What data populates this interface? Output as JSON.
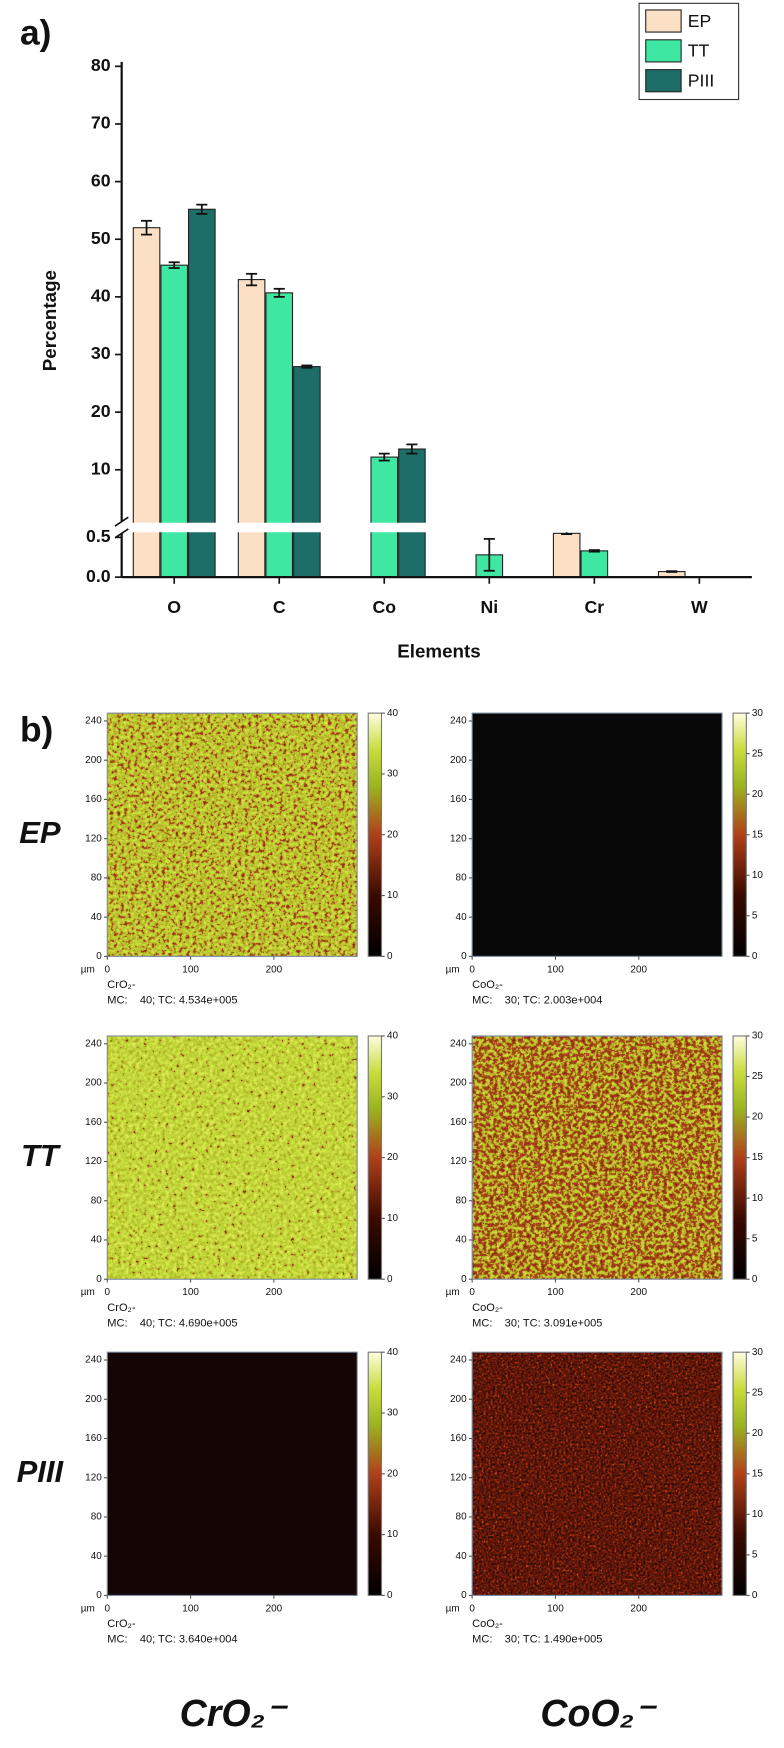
{
  "chart_data": {
    "type": "bar",
    "panel_label": "a)",
    "x_label": "Elements",
    "y_label": "Percentage",
    "categories": [
      "O",
      "C",
      "Co",
      "Ni",
      "Cr",
      "W"
    ],
    "series": [
      {
        "name": "EP",
        "color": "#fbe0c6",
        "values": [
          52,
          43,
          null,
          null,
          0.55,
          0.07
        ],
        "errors": [
          1.2,
          1.0,
          null,
          null,
          0.01,
          0.005
        ]
      },
      {
        "name": "TT",
        "color": "#3fe8a2",
        "values": [
          45.5,
          40.7,
          12.2,
          0.28,
          0.33,
          null
        ],
        "errors": [
          0.5,
          0.7,
          0.6,
          0.2,
          0.01,
          null
        ]
      },
      {
        "name": "PIII",
        "color": "#1d6d69",
        "values": [
          55.2,
          27.9,
          13.6,
          null,
          null,
          null
        ],
        "errors": [
          0.8,
          0.2,
          0.8,
          null,
          null,
          null
        ]
      }
    ],
    "ylim": [
      0,
      80
    ],
    "ybreak": [
      0.55,
      1
    ],
    "yticks": [
      {
        "value": 0,
        "label": "0.0"
      },
      {
        "value": 0.5,
        "label": "0.5"
      },
      10,
      20,
      30,
      40,
      50,
      60,
      70,
      80
    ],
    "legend": "upper right"
  },
  "maps": {
    "panel_label": "b)",
    "row_labels": [
      "EP",
      "TT",
      "PIII"
    ],
    "column_labels": [
      "CrO₂⁻",
      "CoO₂⁻"
    ],
    "unit": "µm",
    "xlim": [
      0,
      300
    ],
    "xticks": [
      0,
      100,
      200
    ],
    "ylim": [
      0,
      248
    ],
    "yticks": [
      0,
      40,
      80,
      120,
      160,
      200,
      240
    ],
    "panels": [
      {
        "species": "CrO₂-",
        "info": "MC:    40; TC: 4.534e+005",
        "clim": [
          0,
          40
        ],
        "cticks": [
          0,
          10,
          20,
          30,
          40
        ]
      },
      {
        "species": "CoO₂-",
        "info": "MC:    30; TC: 2.003e+004",
        "clim": [
          0,
          30
        ],
        "cticks": [
          0,
          5,
          10,
          15,
          20,
          25,
          30
        ]
      },
      {
        "species": "CrO₂-",
        "info": "MC:    40; TC: 4.690e+005",
        "clim": [
          0,
          40
        ],
        "cticks": [
          0,
          10,
          20,
          30,
          40
        ]
      },
      {
        "species": "CoO₂-",
        "info": "MC:    30; TC: 3.091e+005",
        "clim": [
          0,
          30
        ],
        "cticks": [
          0,
          5,
          10,
          15,
          20,
          25,
          30
        ]
      },
      {
        "species": "CrO₂-",
        "info": "MC:    40; TC: 3.640e+004",
        "clim": [
          0,
          40
        ],
        "cticks": [
          0,
          10,
          20,
          30,
          40
        ]
      },
      {
        "species": "CoO₂-",
        "info": "MC:    30; TC: 1.490e+005",
        "clim": [
          0,
          30
        ],
        "cticks": [
          0,
          5,
          10,
          15,
          20,
          25,
          30
        ]
      }
    ]
  }
}
